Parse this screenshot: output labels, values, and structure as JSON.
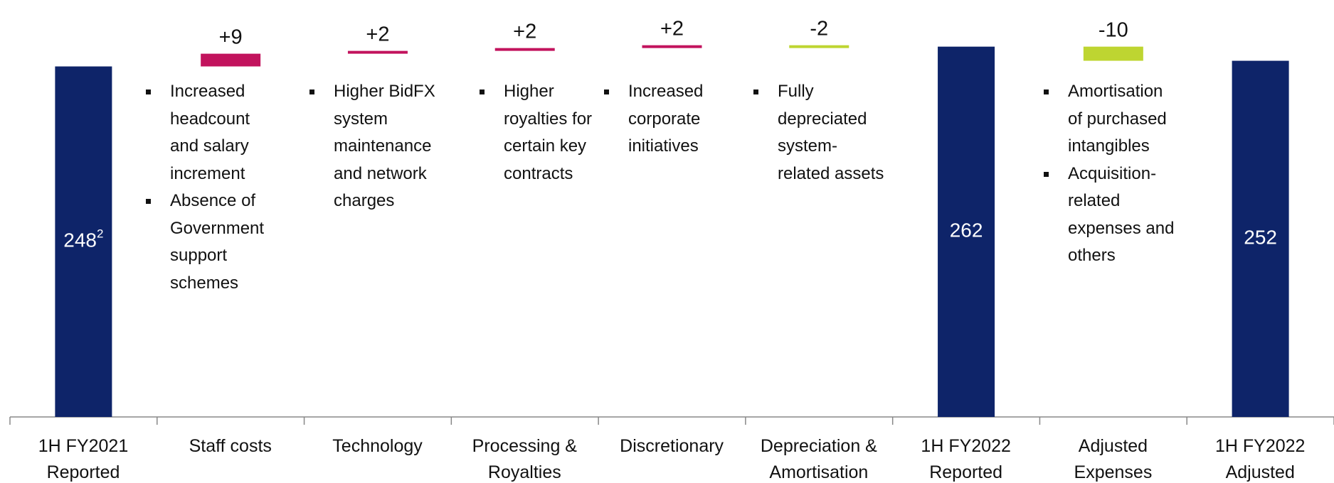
{
  "chart_data": {
    "type": "waterfall",
    "categories": [
      "1H FY2021 Reported",
      "Staff costs",
      "Technology",
      "Processing & Royalties",
      "Discretionary",
      "Depreciation & Amortisation",
      "1H FY2022 Reported",
      "Adjusted Expenses",
      "1H FY2022 Adjusted"
    ],
    "measure": [
      "total",
      "relative",
      "relative",
      "relative",
      "relative",
      "relative",
      "total",
      "relative",
      "total"
    ],
    "values": [
      248,
      9,
      2,
      2,
      2,
      -2,
      262,
      -10,
      252
    ],
    "value_labels": [
      "248",
      "+9",
      "+2",
      "+2",
      "+2",
      "-2",
      "262",
      "-10",
      "252"
    ],
    "first_bar_footnote": "2",
    "colors": {
      "total": "#0e2469",
      "increase": "#c2135d",
      "decrease": "#bed531"
    },
    "ylim": [
      0,
      295
    ],
    "notes": [
      [],
      [
        "Increased headcount and salary increment",
        "Absence of Government support schemes"
      ],
      [
        "Higher BidFX system maintenance and network charges"
      ],
      [
        "Higher royalties for certain key contracts"
      ],
      [
        "Increased corporate initiatives"
      ],
      [
        "Fully depreciated system-related assets"
      ],
      [],
      [
        "Amortisation of purchased intangibles",
        "Acquisition-related expenses and others"
      ],
      []
    ]
  }
}
